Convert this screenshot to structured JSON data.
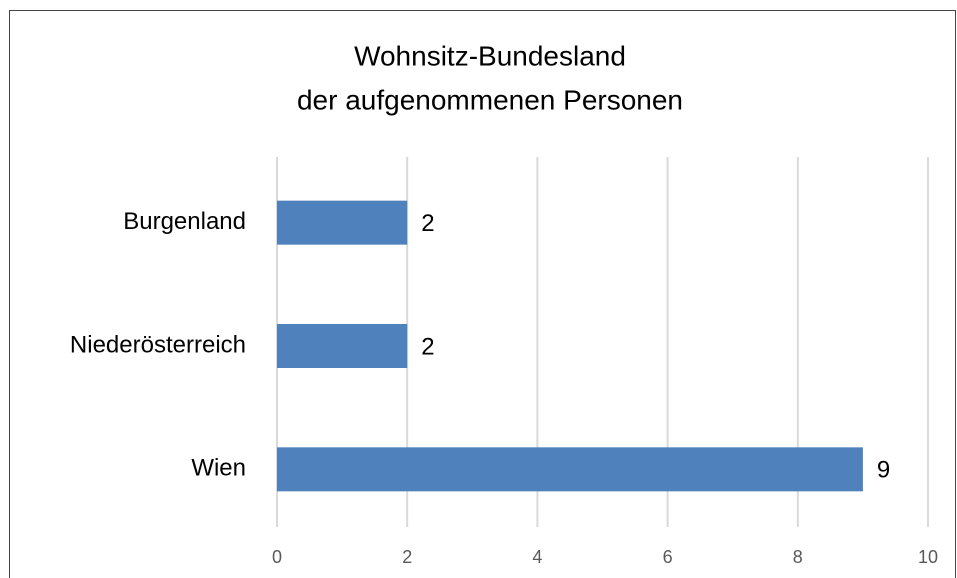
{
  "chart_data": {
    "type": "barh",
    "title": [
      "Wohnsitz-Bundesland",
      "der aufgenommenen Personen"
    ],
    "categories": [
      "Burgenland",
      "Niederösterreich",
      "Wien"
    ],
    "values": [
      2,
      2,
      9
    ],
    "color": "#4f81bd",
    "xlim": [
      0,
      10
    ],
    "xticks": [
      0,
      2,
      4,
      6,
      8,
      10
    ],
    "grid": true
  }
}
